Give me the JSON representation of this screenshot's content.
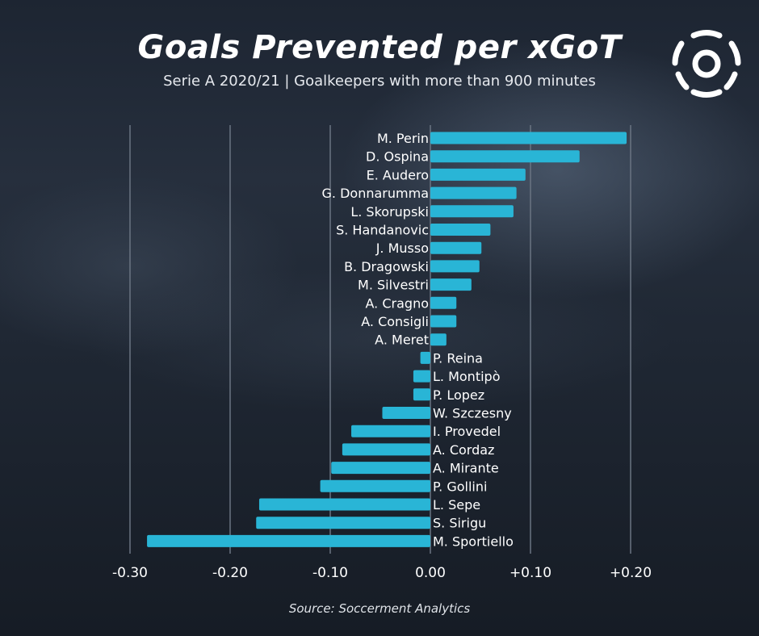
{
  "header": {
    "title": "Goals Prevented per xGoT",
    "subtitle": "Serie A 2020/21 | Goalkeepers with more than 900 minutes"
  },
  "footer": {
    "source": "Source: Soccerment Analytics"
  },
  "logo": {
    "icon": "soccerment-ball-logo-icon"
  },
  "colors": {
    "bar": "#29b5d6",
    "grid": "#6a7482",
    "text": "#ffffff"
  },
  "chart_data": {
    "type": "bar",
    "orientation": "horizontal",
    "title": "Goals Prevented per xGoT",
    "subtitle": "Serie A 2020/21 | Goalkeepers with more than 900 minutes",
    "xlabel": "",
    "ylabel": "",
    "xlim": [
      -0.3,
      0.2
    ],
    "grid": true,
    "legend": "none",
    "x_ticks": [
      {
        "value": -0.3,
        "label": "-0.30"
      },
      {
        "value": -0.2,
        "label": "-0.20"
      },
      {
        "value": -0.1,
        "label": "-0.10"
      },
      {
        "value": 0.0,
        "label": "0.00"
      },
      {
        "value": 0.1,
        "label": "+0.10"
      },
      {
        "value": 0.2,
        "label": "+0.20"
      }
    ],
    "categories": [
      "M. Perin",
      "D. Ospina",
      "E. Audero",
      "G. Donnarumma",
      "L. Skorupski",
      "S. Handanovic",
      "J. Musso",
      "B. Dragowski",
      "M. Silvestri",
      "A. Cragno",
      "A. Consigli",
      "A. Meret",
      "P. Reina",
      "L. Montipò",
      "P. Lopez",
      "W. Szczesny",
      "I. Provedel",
      "A. Cordaz",
      "A. Mirante",
      "P. Gollini",
      "L. Sepe",
      "S. Sirigu",
      "M. Sportiello"
    ],
    "values": [
      0.196,
      0.149,
      0.095,
      0.086,
      0.083,
      0.06,
      0.051,
      0.049,
      0.041,
      0.026,
      0.026,
      0.016,
      -0.01,
      -0.017,
      -0.017,
      -0.048,
      -0.079,
      -0.088,
      -0.099,
      -0.11,
      -0.171,
      -0.174,
      -0.283
    ]
  }
}
